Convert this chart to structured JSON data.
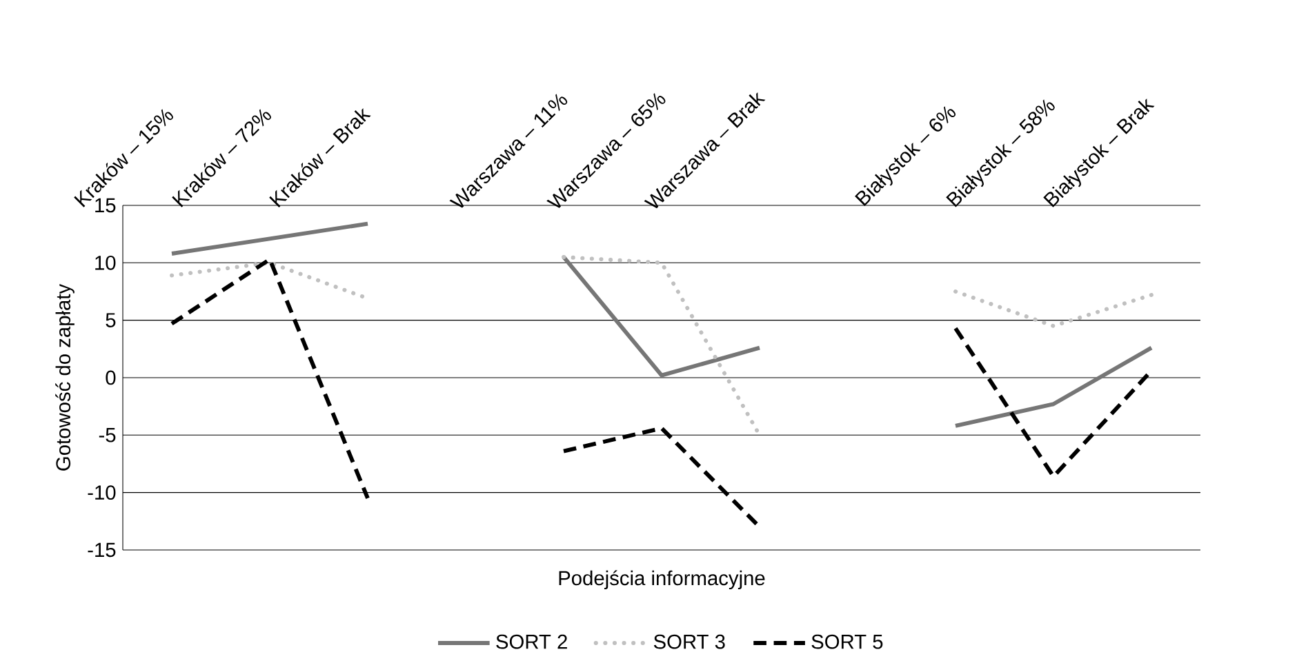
{
  "chart_data": {
    "type": "line",
    "xlabel": "Podejścia informacyjne",
    "ylabel": "Gotowość do zapłaty",
    "categories": [
      "Kraków – 15%",
      "Kraków – 72%",
      "Kraków – Brak",
      null,
      "Warszawa – 11%",
      "Warszawa – 65%",
      "Warszawa – Brak",
      null,
      "Białystok – 6%",
      "Białystok – 58%",
      "Białystok – Brak"
    ],
    "series": [
      {
        "name": "SORT 2",
        "color": "#767676",
        "line_style": "solid",
        "values": [
          10.8,
          12.1,
          13.4,
          null,
          10.5,
          0.2,
          2.6,
          null,
          -4.2,
          -2.3,
          2.6
        ]
      },
      {
        "name": "SORT 3",
        "color": "#c0c0c0",
        "line_style": "dotted",
        "values": [
          8.9,
          10.0,
          6.9,
          null,
          10.5,
          10.0,
          -5.0,
          null,
          7.5,
          4.5,
          7.2
        ]
      },
      {
        "name": "SORT 5",
        "color": "#000000",
        "line_style": "dashed",
        "values": [
          4.7,
          10.3,
          -10.5,
          null,
          -6.4,
          -4.4,
          -13.0,
          null,
          4.3,
          -8.6,
          0.6
        ]
      }
    ],
    "ylim": [
      -15,
      15
    ],
    "yticks": [
      -15,
      -10,
      -5,
      0,
      5,
      10,
      15
    ],
    "grid": "y",
    "legend": "bottom",
    "marker": "none"
  }
}
